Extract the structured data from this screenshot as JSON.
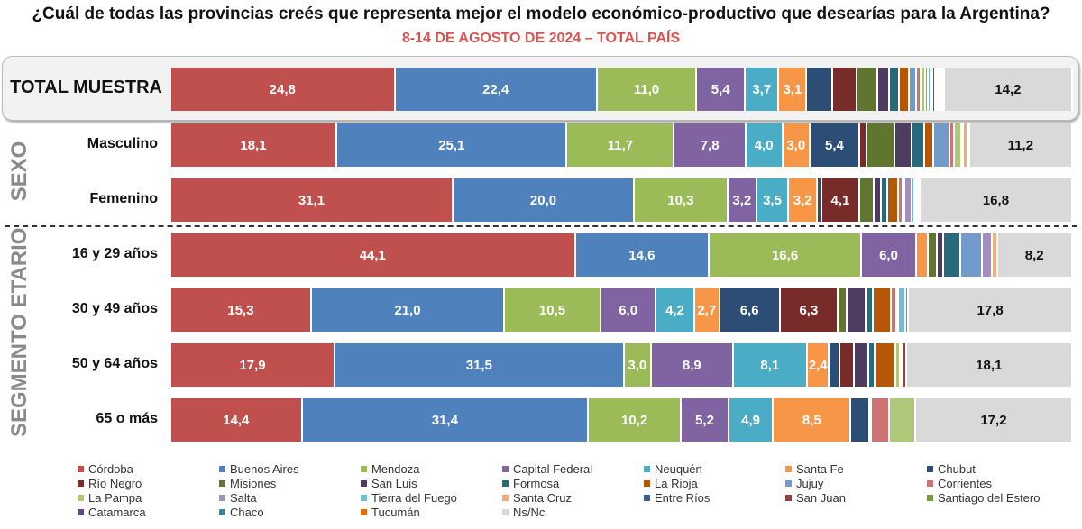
{
  "chart_data": {
    "type": "bar",
    "orientation": "horizontal",
    "stacked": true,
    "percent": true,
    "title": "¿Cuál de todas las provincias creés que representa mejor el modelo económico-productivo que desearías para la Argentina?",
    "subtitle": "8-14 DE AGOSTO DE 2024 – TOTAL PAÍS",
    "groups": [
      {
        "label": "SEXO",
        "rows": [
          1,
          2
        ]
      },
      {
        "label": "SEGMENTO ETARIO",
        "rows": [
          3,
          4,
          5,
          6
        ]
      }
    ],
    "series": [
      "Córdoba",
      "Buenos Aires",
      "Mendoza",
      "Capital Federal",
      "Neuquén",
      "Santa Fe",
      "Chubut",
      "Río Negro",
      "Misiones",
      "San Luis",
      "Formosa",
      "La Rioja",
      "Jujuy",
      "Corrientes",
      "La Pampa",
      "Salta",
      "Tierra del Fuego",
      "Santa Cruz",
      "Entre Ríos",
      "San Juan",
      "Santiago del Estero",
      "Catamarca",
      "Chaco",
      "Tucumán",
      "Ns/Nc"
    ],
    "colors": [
      "#c0504d",
      "#4f81bd",
      "#9bbb59",
      "#8064a2",
      "#4bacc6",
      "#f79646",
      "#2c4d75",
      "#772c2a",
      "#5f7530",
      "#4d3b62",
      "#276a7c",
      "#b65708",
      "#729aca",
      "#cd7371",
      "#afc97a",
      "#a18fbe",
      "#6fbdd1",
      "#f9ab6b",
      "#3a5f8f",
      "#9d3b38",
      "#7c9a3f",
      "#5f497a",
      "#31859c",
      "#e46c0a",
      "#d9d9d9"
    ],
    "rows": [
      {
        "label": "TOTAL MUESTRA",
        "values": [
          24.8,
          22.4,
          11.0,
          5.4,
          3.7,
          3.1,
          2.9,
          2.6,
          2.3,
          1.3,
          1.1,
          1.1,
          0.8,
          0.5,
          0.5,
          0.3,
          0.3,
          0.2,
          0.3,
          0.2,
          0.1,
          0.1,
          0.1,
          0.1,
          14.2
        ],
        "labeled": [
          0,
          1,
          2,
          3,
          4,
          5,
          24
        ]
      },
      {
        "label": "Masculino",
        "values": [
          18.1,
          25.1,
          11.7,
          7.8,
          4.0,
          3.0,
          5.4,
          0.8,
          3.0,
          1.9,
          1.4,
          1.0,
          1.7,
          0.5,
          0.8,
          0,
          0.2,
          0.5,
          0.2,
          0,
          0,
          0,
          0,
          0,
          11.2
        ],
        "labeled": [
          0,
          1,
          2,
          3,
          4,
          5,
          6,
          24
        ]
      },
      {
        "label": "Femenino",
        "values": [
          31.1,
          20.0,
          10.3,
          3.2,
          3.5,
          3.2,
          0.5,
          4.1,
          1.6,
          0.8,
          0.7,
          1.2,
          0,
          0.5,
          0.1,
          0.8,
          0.3,
          0.1,
          0.1,
          0.1,
          0,
          0,
          0,
          0,
          16.8
        ],
        "labeled": [
          0,
          1,
          2,
          3,
          4,
          5,
          7,
          24
        ]
      },
      {
        "label": "16 y 29 años",
        "values": [
          44.1,
          14.6,
          16.6,
          6.0,
          0,
          1.3,
          0,
          0,
          1.0,
          0.6,
          1.9,
          0,
          2.4,
          0,
          0,
          1.1,
          0,
          0.5,
          0,
          0,
          0,
          0,
          0,
          0,
          8.2
        ],
        "labeled": [
          0,
          1,
          2,
          3,
          24
        ]
      },
      {
        "label": "30 y 49 años",
        "values": [
          15.3,
          21.0,
          10.5,
          6.0,
          4.2,
          2.7,
          6.6,
          6.3,
          1.0,
          2.0,
          0.8,
          2.0,
          0,
          0.6,
          0,
          0.2,
          0.8,
          0,
          0,
          0,
          0.3,
          0,
          0,
          0,
          17.8
        ],
        "labeled": [
          0,
          1,
          2,
          3,
          4,
          5,
          6,
          7,
          24
        ]
      },
      {
        "label": "50 y 64 años",
        "values": [
          17.9,
          31.5,
          3.0,
          8.9,
          8.1,
          2.4,
          1.1,
          1.6,
          0,
          1.6,
          0.7,
          2.2,
          0,
          0,
          0.5,
          0,
          0,
          0.2,
          0,
          0.5,
          0,
          0,
          0,
          0,
          18.1
        ],
        "labeled": [
          0,
          1,
          2,
          3,
          4,
          5,
          24
        ]
      },
      {
        "label": "65 o más",
        "values": [
          14.4,
          31.4,
          10.2,
          5.2,
          4.9,
          8.5,
          2.1,
          0,
          0,
          0.2,
          0,
          0,
          0,
          1.9,
          2.9,
          0,
          0,
          0,
          0,
          0,
          0,
          0,
          0,
          0,
          17.2
        ],
        "labeled": [
          0,
          1,
          2,
          3,
          4,
          5,
          24
        ]
      }
    ],
    "legend_position": "bottom",
    "grid": false
  }
}
